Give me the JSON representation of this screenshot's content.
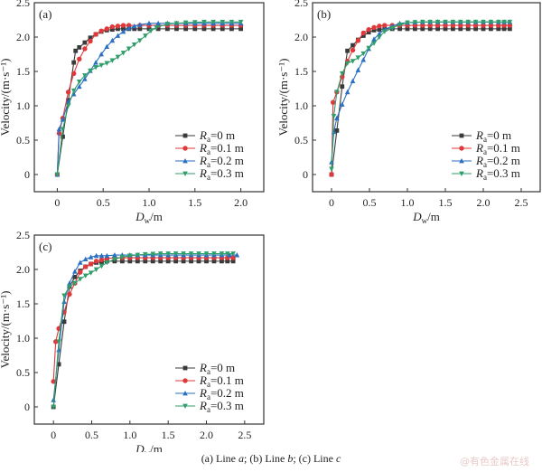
{
  "caption": {
    "a": "(a) Line ",
    "a_it": "a",
    "b": "; (b) Line ",
    "b_it": "b",
    "c": "; (c) Line ",
    "c_it": "c"
  },
  "watermark": "@有色金属在线",
  "colors": {
    "s0": "#3a3a3a",
    "s1": "#e0393b",
    "s2": "#2a6fc0",
    "s3": "#2f9e6a"
  },
  "chart_data": [
    {
      "type": "line",
      "panel": "(a)",
      "xlabel": "D_w/m",
      "ylabel": "Velocity/(m·s⁻¹)",
      "xlim": [
        -0.25,
        2.25
      ],
      "ylim": [
        -0.25,
        2.5
      ],
      "xticks": [
        "0",
        "0.5",
        "1.0",
        "1.5",
        "2.0"
      ],
      "xtick_values": [
        0,
        0.5,
        1.0,
        1.5,
        2.0
      ],
      "yticks": [
        "0",
        "0.5",
        "1.0",
        "1.5",
        "2.0",
        "2.5"
      ],
      "ytick_values": [
        0,
        0.5,
        1.0,
        1.5,
        2.0,
        2.5
      ],
      "legend_position": "bottom-right",
      "series": [
        {
          "name": "Ra=0 m",
          "marker": "square",
          "x": [
            0,
            0.06,
            0.12,
            0.18,
            0.2,
            0.24,
            0.3,
            0.36,
            0.42,
            0.48,
            0.54,
            0.6,
            0.66,
            0.72,
            0.78,
            0.84,
            0.9,
            1.0,
            1.2,
            1.4,
            1.6,
            1.8,
            2.0
          ],
          "y": [
            0,
            0.55,
            1.08,
            1.63,
            1.8,
            1.85,
            1.92,
            1.99,
            2.04,
            2.08,
            2.1,
            2.11,
            2.12,
            2.12,
            2.12,
            2.12,
            2.12,
            2.12,
            2.12,
            2.12,
            2.12,
            2.12,
            2.12
          ]
        },
        {
          "name": "Ra=0.1 m",
          "marker": "circle",
          "x": [
            0,
            0.02,
            0.06,
            0.12,
            0.18,
            0.24,
            0.3,
            0.36,
            0.42,
            0.48,
            0.54,
            0.6,
            0.66,
            0.72,
            0.78,
            0.9,
            1.0,
            1.2,
            1.4,
            1.6,
            1.8,
            2.0
          ],
          "y": [
            0,
            0.6,
            0.82,
            1.2,
            1.47,
            1.68,
            1.83,
            1.94,
            2.04,
            2.09,
            2.12,
            2.15,
            2.16,
            2.17,
            2.17,
            2.17,
            2.17,
            2.17,
            2.17,
            2.17,
            2.17,
            2.17
          ]
        },
        {
          "name": "Ra=0.2 m",
          "marker": "triangle-up",
          "x": [
            0,
            0.02,
            0.06,
            0.12,
            0.18,
            0.24,
            0.3,
            0.36,
            0.42,
            0.48,
            0.54,
            0.6,
            0.66,
            0.72,
            0.78,
            0.84,
            0.9,
            1.0,
            1.1,
            1.2,
            1.4,
            1.6,
            1.8,
            2.0
          ],
          "y": [
            0,
            0.66,
            0.8,
            1.06,
            1.17,
            1.28,
            1.39,
            1.51,
            1.63,
            1.75,
            1.86,
            1.95,
            2.02,
            2.08,
            2.13,
            2.16,
            2.18,
            2.2,
            2.2,
            2.2,
            2.2,
            2.2,
            2.2,
            2.2
          ]
        },
        {
          "name": "Ra=0.3 m",
          "marker": "triangle-down",
          "x": [
            0,
            0.06,
            0.12,
            0.18,
            0.24,
            0.3,
            0.36,
            0.42,
            0.48,
            0.54,
            0.6,
            0.66,
            0.72,
            0.78,
            0.84,
            0.9,
            0.96,
            1.02,
            1.08,
            1.2,
            1.4,
            1.6,
            1.8,
            2.0
          ],
          "y": [
            0,
            0.66,
            1.0,
            1.22,
            1.35,
            1.44,
            1.51,
            1.56,
            1.59,
            1.62,
            1.66,
            1.71,
            1.77,
            1.83,
            1.89,
            1.95,
            2.02,
            2.09,
            2.14,
            2.19,
            2.21,
            2.22,
            2.22,
            2.22
          ]
        }
      ]
    },
    {
      "type": "line",
      "panel": "(b)",
      "xlabel": "D_w/m",
      "ylabel": "Velocity/(m·s⁻¹)",
      "xlim": [
        -0.25,
        2.75
      ],
      "ylim": [
        -0.25,
        2.5
      ],
      "xticks": [
        "0",
        "0.5",
        "1.0",
        "1.5",
        "2.0",
        "2.5"
      ],
      "xtick_values": [
        0,
        0.5,
        1.0,
        1.5,
        2.0,
        2.5
      ],
      "yticks": [
        "0",
        "0.5",
        "1.0",
        "1.5",
        "2.0",
        "2.5"
      ],
      "ytick_values": [
        0,
        0.5,
        1.0,
        1.5,
        2.0,
        2.5
      ],
      "legend_position": "bottom-right",
      "series": [
        {
          "name": "Ra=0 m",
          "marker": "square",
          "x": [
            0,
            0.07,
            0.14,
            0.21,
            0.28,
            0.35,
            0.42,
            0.49,
            0.56,
            0.63,
            0.7,
            0.8,
            1.0,
            1.2,
            1.4,
            1.6,
            1.8,
            2.0,
            2.2,
            2.35
          ],
          "y": [
            0,
            0.64,
            1.28,
            1.8,
            1.88,
            1.96,
            2.02,
            2.07,
            2.1,
            2.11,
            2.12,
            2.12,
            2.12,
            2.12,
            2.12,
            2.12,
            2.12,
            2.12,
            2.12,
            2.12
          ]
        },
        {
          "name": "Ra=0.1 m",
          "marker": "circle",
          "x": [
            0,
            0.02,
            0.07,
            0.14,
            0.21,
            0.28,
            0.35,
            0.42,
            0.49,
            0.56,
            0.63,
            0.7,
            0.8,
            1.0,
            1.2,
            1.4,
            1.6,
            1.8,
            2.0,
            2.2,
            2.35
          ],
          "y": [
            0,
            1.05,
            1.2,
            1.42,
            1.65,
            1.81,
            1.95,
            2.06,
            2.11,
            2.14,
            2.16,
            2.17,
            2.17,
            2.17,
            2.17,
            2.17,
            2.17,
            2.17,
            2.17,
            2.17,
            2.17
          ]
        },
        {
          "name": "Ra=0.2 m",
          "marker": "triangle-up",
          "x": [
            0,
            0.03,
            0.07,
            0.14,
            0.21,
            0.28,
            0.35,
            0.42,
            0.49,
            0.56,
            0.63,
            0.7,
            0.8,
            0.9,
            1.0,
            1.2,
            1.4,
            1.6,
            1.8,
            2.0,
            2.2,
            2.35
          ],
          "y": [
            0.18,
            0.62,
            0.82,
            1.02,
            1.2,
            1.36,
            1.52,
            1.67,
            1.83,
            1.97,
            2.05,
            2.11,
            2.16,
            2.2,
            2.21,
            2.22,
            2.22,
            2.22,
            2.22,
            2.22,
            2.22,
            2.22
          ]
        },
        {
          "name": "Ra=0.3 m",
          "marker": "triangle-down",
          "x": [
            0,
            0.03,
            0.07,
            0.14,
            0.21,
            0.28,
            0.35,
            0.42,
            0.49,
            0.56,
            0.63,
            0.7,
            0.8,
            0.9,
            1.0,
            1.2,
            1.4,
            1.6,
            1.8,
            2.0,
            2.2,
            2.35
          ],
          "y": [
            0.08,
            0.85,
            1.2,
            1.47,
            1.62,
            1.65,
            1.7,
            1.76,
            1.84,
            1.91,
            2.0,
            2.08,
            2.13,
            2.18,
            2.21,
            2.22,
            2.22,
            2.22,
            2.22,
            2.22,
            2.22,
            2.22
          ]
        }
      ]
    },
    {
      "type": "line",
      "panel": "(c)",
      "xlabel": "D_w/m",
      "ylabel": "Velocity/(m·s⁻¹)",
      "xlim": [
        -0.25,
        2.75
      ],
      "ylim": [
        -0.25,
        2.5
      ],
      "xticks": [
        "0",
        "0.5",
        "1.0",
        "1.5",
        "2.0",
        "2.5"
      ],
      "xtick_values": [
        0,
        0.5,
        1.0,
        1.5,
        2.0,
        2.5
      ],
      "yticks": [
        "0",
        "0.5",
        "1.0",
        "1.5",
        "2.0",
        "2.5"
      ],
      "ytick_values": [
        0,
        0.5,
        1.0,
        1.5,
        2.0,
        2.5
      ],
      "legend_position": "bottom-right",
      "series": [
        {
          "name": "Ra=0 m",
          "marker": "square",
          "x": [
            0,
            0.07,
            0.14,
            0.21,
            0.28,
            0.35,
            0.42,
            0.49,
            0.56,
            0.63,
            0.7,
            0.8,
            1.0,
            1.2,
            1.4,
            1.6,
            1.8,
            2.0,
            2.2,
            2.35
          ],
          "y": [
            0,
            0.62,
            1.24,
            1.75,
            1.89,
            1.98,
            2.04,
            2.08,
            2.1,
            2.11,
            2.12,
            2.12,
            2.12,
            2.12,
            2.12,
            2.12,
            2.12,
            2.12,
            2.12,
            2.12
          ]
        },
        {
          "name": "Ra=0.1 m",
          "marker": "circle",
          "x": [
            0,
            0.03,
            0.07,
            0.14,
            0.21,
            0.28,
            0.35,
            0.42,
            0.49,
            0.56,
            0.63,
            0.7,
            0.8,
            1.0,
            1.2,
            1.4,
            1.6,
            1.8,
            2.0,
            2.2,
            2.35
          ],
          "y": [
            0.37,
            0.95,
            1.14,
            1.38,
            1.64,
            1.8,
            1.96,
            2.04,
            2.08,
            2.12,
            2.14,
            2.16,
            2.17,
            2.17,
            2.17,
            2.17,
            2.17,
            2.17,
            2.17,
            2.17,
            2.17
          ]
        },
        {
          "name": "Ra=0.2 m",
          "marker": "triangle-up",
          "x": [
            0,
            0.07,
            0.14,
            0.21,
            0.28,
            0.35,
            0.42,
            0.49,
            0.56,
            0.63,
            0.7,
            0.8,
            0.9,
            1.0,
            1.2,
            1.4,
            1.6,
            1.8,
            2.0,
            2.2,
            2.4
          ],
          "y": [
            0.1,
            0.83,
            1.53,
            1.8,
            1.97,
            2.1,
            2.15,
            2.18,
            2.2,
            2.2,
            2.2,
            2.21,
            2.21,
            2.21,
            2.21,
            2.21,
            2.21,
            2.21,
            2.21,
            2.21,
            2.21
          ]
        },
        {
          "name": "Ra=0.3 m",
          "marker": "triangle-down",
          "x": [
            0,
            0.07,
            0.14,
            0.21,
            0.28,
            0.35,
            0.42,
            0.49,
            0.56,
            0.63,
            0.7,
            0.8,
            0.9,
            1.0,
            1.2,
            1.4,
            1.6,
            1.8,
            2.0,
            2.2,
            2.35
          ],
          "y": [
            0,
            0.95,
            1.62,
            1.75,
            1.8,
            1.86,
            1.91,
            1.95,
            2.0,
            2.05,
            2.1,
            2.15,
            2.18,
            2.2,
            2.22,
            2.23,
            2.23,
            2.23,
            2.23,
            2.23,
            2.23
          ]
        }
      ]
    }
  ]
}
